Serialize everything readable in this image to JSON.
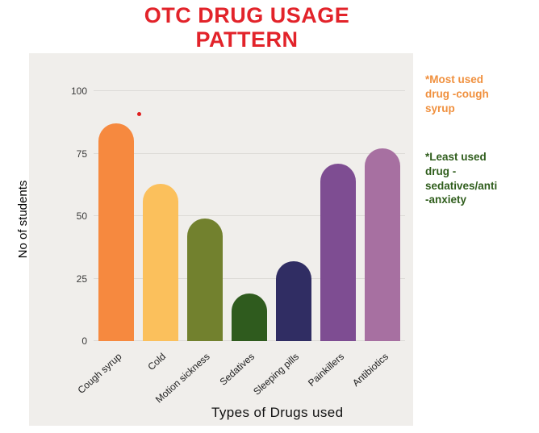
{
  "title": {
    "line1": "OTC DRUG USAGE",
    "line2": "PATTERN",
    "color": "#e2232a"
  },
  "chart_data": {
    "type": "bar",
    "title": "OTC DRUG USAGE PATTERN",
    "categories": [
      "Cough syrup",
      "Cold",
      "Motion sickness",
      "Sedatives",
      "Sleeping pills",
      "Painkillers",
      "Antibiotics"
    ],
    "values": [
      87,
      63,
      49,
      19,
      32,
      71,
      77
    ],
    "colors": [
      "#f6893f",
      "#fbc05c",
      "#72812e",
      "#2f5b1e",
      "#302d63",
      "#7e4d92",
      "#a770a1"
    ],
    "xlabel": "Types of Drugs used",
    "ylabel": "No of students",
    "ylim": [
      0,
      100
    ],
    "yticks": [
      0,
      25,
      50,
      75,
      100
    ],
    "grid": true,
    "legend": "none",
    "plot_background": "#f0eeeb",
    "point_annotation": {
      "x_slot": 1.02,
      "value": 90,
      "color": "#e01e1e"
    }
  },
  "annotations": {
    "most_used": {
      "text": "*Most used\ndrug -cough\nsyrup",
      "color": "#f0903e"
    },
    "least_used": {
      "text": "*Least used\ndrug -\nsedatives/anti\n-anxiety",
      "color": "#2f5d1c"
    }
  }
}
